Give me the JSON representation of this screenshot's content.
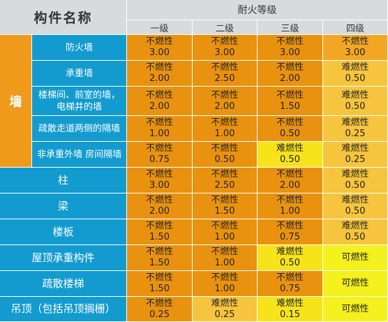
{
  "header": {
    "component_name": "构件名称",
    "fire_rating": "耐火等级",
    "grades": [
      "一级",
      "二级",
      "三级",
      "四级"
    ]
  },
  "wall_group": "墙",
  "wall_rows": [
    {
      "name": "防火墙",
      "cells": [
        {
          "material": "不燃性",
          "value": "3.00",
          "tone": "dark"
        },
        {
          "material": "不燃性",
          "value": "3.00",
          "tone": "dark"
        },
        {
          "material": "不燃性",
          "value": "3.00",
          "tone": "dark"
        },
        {
          "material": "不燃性",
          "value": "3.00",
          "tone": "mid"
        }
      ]
    },
    {
      "name": "承重墙",
      "cells": [
        {
          "material": "不燃性",
          "value": "2.00",
          "tone": "dark"
        },
        {
          "material": "不燃性",
          "value": "2.50",
          "tone": "dark"
        },
        {
          "material": "不燃性",
          "value": "2.00",
          "tone": "dark"
        },
        {
          "material": "难燃性",
          "value": "0.50",
          "tone": "light"
        }
      ]
    },
    {
      "name": "楼梯间、前室的墙，电梯井的墙",
      "cells": [
        {
          "material": "不燃性",
          "value": "2.00",
          "tone": "dark"
        },
        {
          "material": "不燃性",
          "value": "2.00",
          "tone": "dark"
        },
        {
          "material": "不燃性",
          "value": "1.50",
          "tone": "dark"
        },
        {
          "material": "难燃性",
          "value": "0.50",
          "tone": "light"
        }
      ]
    },
    {
      "name": "疏散走道两侧的隔墙",
      "cells": [
        {
          "material": "不燃性",
          "value": "1.00",
          "tone": "dark"
        },
        {
          "material": "不燃性",
          "value": "1.00",
          "tone": "dark"
        },
        {
          "material": "不燃性",
          "value": "0.50",
          "tone": "dark"
        },
        {
          "material": "难燃性",
          "value": "0.25",
          "tone": "light"
        }
      ]
    },
    {
      "name": "非承重外墙 房间隔墙",
      "cells": [
        {
          "material": "不燃性",
          "value": "0.75",
          "tone": "dark"
        },
        {
          "material": "不燃性",
          "value": "0.50",
          "tone": "dark"
        },
        {
          "material": "难燃性",
          "value": "0.50",
          "tone": "ylight"
        },
        {
          "material": "难燃性",
          "value": "0.25",
          "tone": "light"
        }
      ]
    }
  ],
  "rows": [
    {
      "name": "柱",
      "cells": [
        {
          "material": "不燃性",
          "value": "3.00",
          "tone": "dark"
        },
        {
          "material": "不燃性",
          "value": "2.50",
          "tone": "dark"
        },
        {
          "material": "不燃性",
          "value": "2.00",
          "tone": "dark"
        },
        {
          "material": "难燃性",
          "value": "0.50",
          "tone": "light"
        }
      ]
    },
    {
      "name": "梁",
      "cells": [
        {
          "material": "不燃性",
          "value": "2.00",
          "tone": "dark"
        },
        {
          "material": "不燃性",
          "value": "1.50",
          "tone": "dark"
        },
        {
          "material": "不燃性",
          "value": "1.00",
          "tone": "dark"
        },
        {
          "material": "难燃性",
          "value": "0.50",
          "tone": "light"
        }
      ]
    },
    {
      "name": "楼板",
      "cells": [
        {
          "material": "不燃性",
          "value": "1.50",
          "tone": "dark"
        },
        {
          "material": "不燃性",
          "value": "1.00",
          "tone": "dark"
        },
        {
          "material": "不燃性",
          "value": "0.75",
          "tone": "dark"
        },
        {
          "material": "难燃性",
          "value": "0.50",
          "tone": "light"
        }
      ]
    },
    {
      "name": "屋顶承重构件",
      "cells": [
        {
          "material": "不燃性",
          "value": "1.50",
          "tone": "dark"
        },
        {
          "material": "不燃性",
          "value": "1.00",
          "tone": "dark"
        },
        {
          "material": "难燃性",
          "value": "0.50",
          "tone": "ylight"
        },
        {
          "material": "可燃性",
          "value": "",
          "tone": "yellow"
        }
      ]
    },
    {
      "name": "疏散楼梯",
      "cells": [
        {
          "material": "不燃性",
          "value": "1.50",
          "tone": "dark"
        },
        {
          "material": "不燃性",
          "value": "1.00",
          "tone": "dark"
        },
        {
          "material": "不燃性",
          "value": "0.75",
          "tone": "dark"
        },
        {
          "material": "可燃性",
          "value": "",
          "tone": "yellow"
        }
      ]
    },
    {
      "name": "吊顶（包括吊顶搁栅）",
      "cells": [
        {
          "material": "不燃性",
          "value": "0.25",
          "tone": "dark"
        },
        {
          "material": "难燃性",
          "value": "0.25",
          "tone": "light"
        },
        {
          "material": "难燃性",
          "value": "0.15",
          "tone": "ylight"
        },
        {
          "material": "可燃性",
          "value": "",
          "tone": "yellow"
        }
      ]
    }
  ],
  "colors": {
    "header_bg": "#d9dadb",
    "row_label_bg": "#139bd0",
    "group_label_bg": "#f09a1c",
    "dark": "#e9920f",
    "mid": "#f3a624",
    "light": "#f6c53d",
    "ylight": "#f7e31a",
    "yellow": "#f4f11e"
  }
}
